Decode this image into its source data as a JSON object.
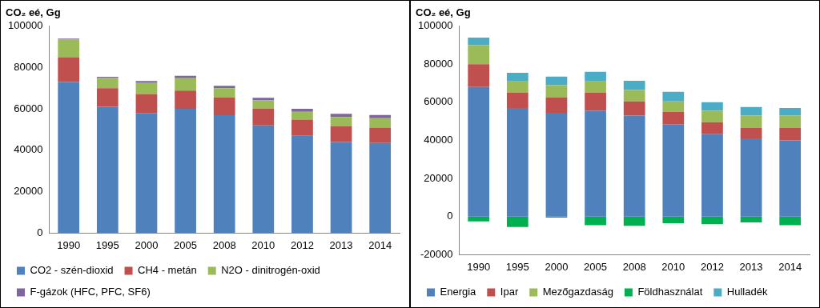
{
  "chart_data": [
    {
      "type": "bar",
      "title": "CO₂ eé, Gg",
      "stacked": true,
      "grid": false,
      "legend": "bottom",
      "categories": [
        "1990",
        "1995",
        "2000",
        "2005",
        "2008",
        "2010",
        "2012",
        "2013",
        "2014"
      ],
      "ylim": [
        0,
        100000
      ],
      "yticks": [
        0,
        20000,
        40000,
        60000,
        80000,
        100000
      ],
      "series": [
        {
          "name": "CO2 - szén-dioxid",
          "color": "#4f81bd",
          "values": [
            73000,
            61000,
            58000,
            60000,
            57000,
            52000,
            47000,
            44000,
            43500
          ]
        },
        {
          "name": "CH4 - metán",
          "color": "#c0504d",
          "values": [
            12000,
            9000,
            9000,
            8800,
            8500,
            8000,
            7800,
            7600,
            7500
          ]
        },
        {
          "name": "N2O - dinitrogén-oxid",
          "color": "#9bbb59",
          "values": [
            8500,
            5000,
            5800,
            6000,
            4500,
            4200,
            3800,
            4500,
            4500
          ]
        },
        {
          "name": "F-gázok (HFC, PFC, SF6)",
          "color": "#8064a2",
          "values": [
            500,
            500,
            700,
            1200,
            1200,
            1200,
            1400,
            1500,
            1600
          ]
        }
      ]
    },
    {
      "type": "bar",
      "title": "CO₂ eé, Gg",
      "stacked": true,
      "grid": false,
      "legend": "bottom",
      "categories": [
        "1990",
        "1995",
        "2000",
        "2005",
        "2008",
        "2010",
        "2012",
        "2013",
        "2014"
      ],
      "ylim": [
        -20000,
        100000
      ],
      "yticks": [
        -20000,
        0,
        20000,
        40000,
        60000,
        80000,
        100000
      ],
      "series": [
        {
          "name": "Energia",
          "color": "#4f81bd",
          "values": [
            68000,
            57000,
            54500,
            55500,
            53000,
            48500,
            43500,
            41000,
            40000
          ]
        },
        {
          "name": "Ipar",
          "color": "#c0504d",
          "values": [
            12000,
            8000,
            8000,
            9500,
            7500,
            6500,
            6000,
            5500,
            6500
          ]
        },
        {
          "name": "Mezőgazdaság",
          "color": "#9bbb59",
          "values": [
            10000,
            6000,
            6500,
            6000,
            6000,
            5500,
            6000,
            6500,
            6500
          ]
        },
        {
          "name": "Földhasználat",
          "color": "#00b050",
          "values": [
            -2500,
            -5500,
            -500,
            -4500,
            -4800,
            -3500,
            -4000,
            -3000,
            -4500
          ]
        },
        {
          "name": "Hulladék",
          "color": "#4bacc6",
          "values": [
            4000,
            4500,
            4500,
            5000,
            4800,
            5000,
            4500,
            4500,
            4000
          ]
        }
      ]
    }
  ]
}
